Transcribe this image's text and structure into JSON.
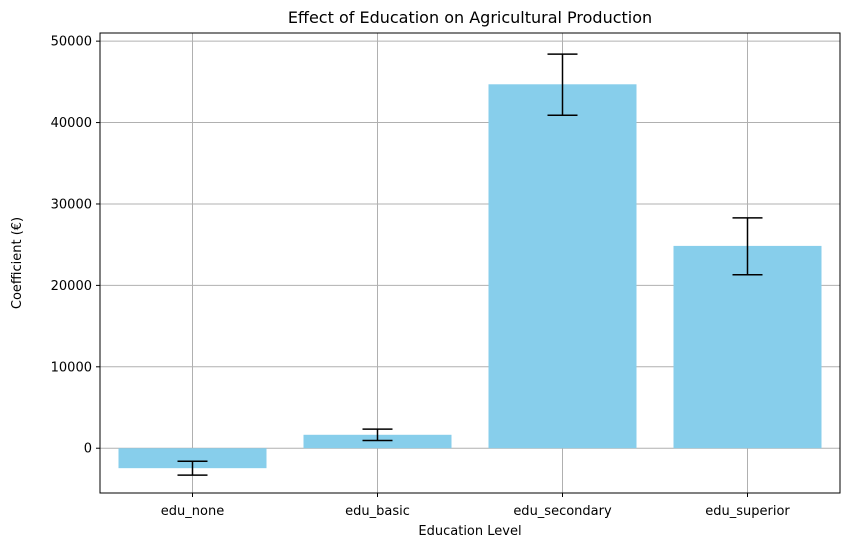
{
  "chart_data": {
    "type": "bar",
    "title": "Effect of Education on Agricultural Production",
    "xlabel": "Education Level",
    "ylabel": "Coefficient (€)",
    "categories": [
      "edu_none",
      "edu_basic",
      "edu_secondary",
      "edu_superior"
    ],
    "values": [
      -2450,
      1650,
      44700,
      24850
    ],
    "error_low": [
      -3300,
      950,
      40900,
      21300
    ],
    "error_high": [
      -1600,
      2350,
      48400,
      28300
    ],
    "ylim": [
      -5500,
      51000
    ],
    "yticks": [
      0,
      10000,
      20000,
      30000,
      40000,
      50000
    ],
    "grid": true,
    "bar_color": "#87ceeb",
    "error_color": "#000000"
  }
}
